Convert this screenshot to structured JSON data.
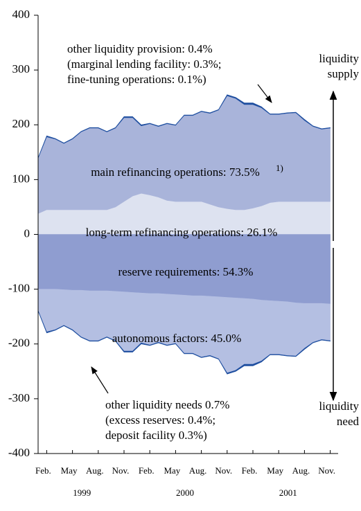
{
  "chart_data": {
    "type": "stacked_area",
    "categories": [
      null,
      "Feb.",
      null,
      null,
      "May",
      null,
      null,
      "Aug.",
      null,
      null,
      "Nov.",
      null,
      null,
      "Feb.",
      null,
      null,
      "May",
      null,
      null,
      "Aug.",
      null,
      null,
      "Nov.",
      null,
      null,
      "Feb.",
      null,
      null,
      "May",
      null,
      null,
      "Aug.",
      null,
      null,
      "Nov."
    ],
    "years": [
      "1999",
      "2000",
      "2001"
    ],
    "ylim": [
      -400,
      400
    ],
    "yticks": [
      400,
      300,
      200,
      100,
      0,
      -100,
      -200,
      -300,
      -400
    ],
    "series": [
      {
        "name": "long-term refinancing operations: 26.1%",
        "color": "#dde2f0",
        "values": [
          38,
          45,
          45,
          45,
          45,
          45,
          45,
          45,
          45,
          50,
          60,
          70,
          75,
          72,
          68,
          62,
          60,
          60,
          60,
          60,
          55,
          50,
          47,
          45,
          45,
          48,
          52,
          58,
          60,
          60,
          60,
          60,
          60,
          60,
          60
        ]
      },
      {
        "name": "main refinancing operations: 73.5%",
        "note": "1)",
        "color": "#a9b4da",
        "values": [
          101,
          133,
          129,
          121,
          129,
          142,
          149,
          149,
          142,
          144,
          153,
          143,
          123,
          130,
          129,
          140,
          139,
          157,
          157,
          164,
          166,
          177,
          206,
          203,
          192,
          189,
          179,
          161,
          159,
          161,
          162,
          148,
          137,
          132,
          134
        ]
      },
      {
        "name": "other liquidity provision: 0.4%",
        "details": [
          "(marginal lending facility: 0.3%;",
          "fine-tuning operations: 0.1%)"
        ],
        "color": "#1f4fa0",
        "values": [
          1,
          2,
          1,
          1,
          1,
          1,
          1,
          1,
          1,
          1,
          2,
          2,
          2,
          1,
          1,
          1,
          1,
          1,
          1,
          1,
          1,
          1,
          2,
          2,
          3,
          3,
          2,
          1,
          1,
          1,
          1,
          2,
          1,
          1,
          1
        ]
      },
      {
        "name": "reserve requirements: 54.3%",
        "color": "#8f9dd0",
        "values": [
          -100,
          -100,
          -100,
          -101,
          -102,
          -102,
          -103,
          -103,
          -103,
          -104,
          -105,
          -106,
          -107,
          -108,
          -108,
          -109,
          -110,
          -111,
          -112,
          -112,
          -113,
          -114,
          -115,
          -116,
          -117,
          -118,
          -120,
          -121,
          -122,
          -123,
          -125,
          -126,
          -126,
          -126,
          -127
        ]
      },
      {
        "name": "autonomous factors: 45.0%",
        "color": "#b4bfe2",
        "values": [
          -39,
          -78,
          -74,
          -65,
          -72,
          -85,
          -91,
          -91,
          -84,
          -90,
          -108,
          -107,
          -91,
          -94,
          -89,
          -93,
          -89,
          -106,
          -105,
          -112,
          -108,
          -113,
          -138,
          -132,
          -120,
          -119,
          -111,
          -98,
          -97,
          -98,
          -97,
          -82,
          -71,
          -66,
          -67
        ]
      },
      {
        "name": "other liquidity needs 0.7%",
        "details": [
          "(excess reserves: 0.4%;",
          "deposit facility 0.3%)"
        ],
        "color": "#1f4fa0",
        "values": [
          -1,
          -2,
          -1,
          -1,
          -1,
          -1,
          -1,
          -1,
          -1,
          -1,
          -2,
          -2,
          -2,
          -1,
          -1,
          -1,
          -1,
          -1,
          -1,
          -1,
          -1,
          -1,
          -2,
          -2,
          -3,
          -3,
          -2,
          -1,
          -1,
          -1,
          -1,
          -2,
          -1,
          -1,
          -1
        ]
      }
    ],
    "supply_label": [
      "liquidity",
      "supply"
    ],
    "need_label": [
      "liquidity",
      "need"
    ]
  }
}
